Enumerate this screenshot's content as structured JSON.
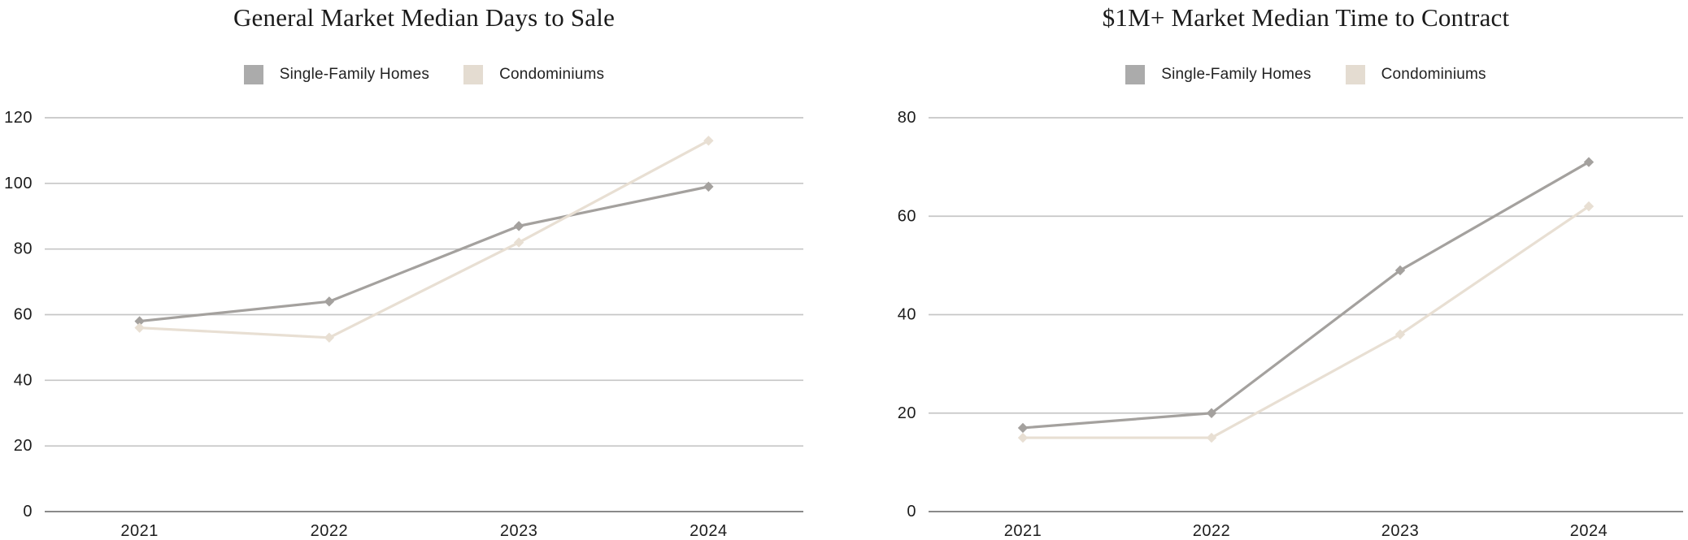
{
  "page": {
    "background": "#ffffff"
  },
  "palette": {
    "grid_line": "#c6c6c6",
    "axis_line": "#8a8a8a",
    "tick_text": "#1c1c1c",
    "title_text": "#1a1a1a"
  },
  "chart_data": [
    {
      "type": "line",
      "title": "General Market Median Days to Sale",
      "categories": [
        "2021",
        "2022",
        "2023",
        "2024"
      ],
      "series": [
        {
          "name": "Single-Family Homes",
          "color": "#a4a19e",
          "swatch": "#ababab",
          "values": [
            58,
            64,
            87,
            99
          ]
        },
        {
          "name": "Condominiums",
          "color": "#e8dfd3",
          "swatch": "#e4dcd1",
          "values": [
            56,
            53,
            82,
            113
          ]
        }
      ],
      "xlabel": "",
      "ylabel": "",
      "ylim": [
        0,
        120
      ],
      "ytick_step": 20,
      "grid": true,
      "legend_position": "top",
      "marker": "diamond"
    },
    {
      "type": "line",
      "title": "$1M+ Market Median Time to Contract",
      "categories": [
        "2021",
        "2022",
        "2023",
        "2024"
      ],
      "series": [
        {
          "name": "Single-Family Homes",
          "color": "#a4a19e",
          "swatch": "#ababab",
          "values": [
            17,
            20,
            49,
            71
          ]
        },
        {
          "name": "Condominiums",
          "color": "#e8dfd3",
          "swatch": "#e4dcd1",
          "values": [
            15,
            15,
            36,
            62
          ]
        }
      ],
      "xlabel": "",
      "ylabel": "",
      "ylim": [
        0,
        80
      ],
      "ytick_step": 20,
      "grid": true,
      "legend_position": "top",
      "marker": "diamond"
    }
  ]
}
